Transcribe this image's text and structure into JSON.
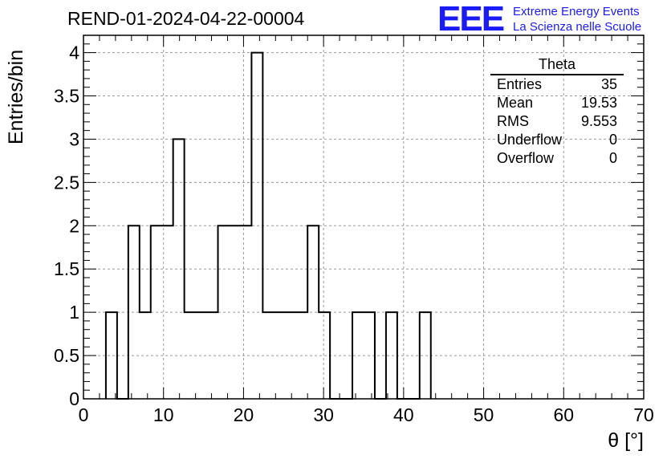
{
  "title": "REND-01-2024-04-22-00004",
  "logo": {
    "mark": "EEE",
    "line1": "Extreme Energy Events",
    "line2": "La Scienza nelle Scuole"
  },
  "stats": {
    "title": "Theta",
    "rows": [
      {
        "label": "Entries",
        "value": "35"
      },
      {
        "label": "Mean",
        "value": "19.53"
      },
      {
        "label": "RMS",
        "value": "9.553"
      },
      {
        "label": "Underflow",
        "value": "0"
      },
      {
        "label": "Overflow",
        "value": "0"
      }
    ]
  },
  "chart_data": {
    "type": "histogram",
    "title": "REND-01-2024-04-22-00004",
    "xlabel": "θ [°]",
    "ylabel": "Entries/bin",
    "xlim": [
      0,
      70
    ],
    "ylim": [
      0,
      4.2
    ],
    "xticks": [
      "0",
      "10",
      "20",
      "30",
      "40",
      "50",
      "60",
      "70"
    ],
    "yticks": [
      "0",
      "0.5",
      "1",
      "1.5",
      "2",
      "2.5",
      "3",
      "3.5",
      "4"
    ],
    "grid": true,
    "bin_edges": [
      2.8,
      4.2,
      5.6,
      7.0,
      8.4,
      9.8,
      11.2,
      12.6,
      14.0,
      15.4,
      16.8,
      18.2,
      19.6,
      21.0,
      22.4,
      23.8,
      25.2,
      26.6,
      28.0,
      29.4,
      30.8,
      32.2,
      33.6,
      35.0,
      36.4,
      37.8,
      39.2,
      40.6,
      42.0,
      43.4
    ],
    "counts": [
      1,
      0,
      2,
      1,
      2,
      2,
      3,
      1,
      1,
      1,
      2,
      2,
      2,
      4,
      1,
      1,
      1,
      1,
      2,
      1,
      0,
      0,
      1,
      1,
      0,
      1,
      0,
      0,
      1
    ],
    "colors": {
      "line": "#000000",
      "grid": "#9a9a9a",
      "logo": "#1a1aff"
    }
  }
}
